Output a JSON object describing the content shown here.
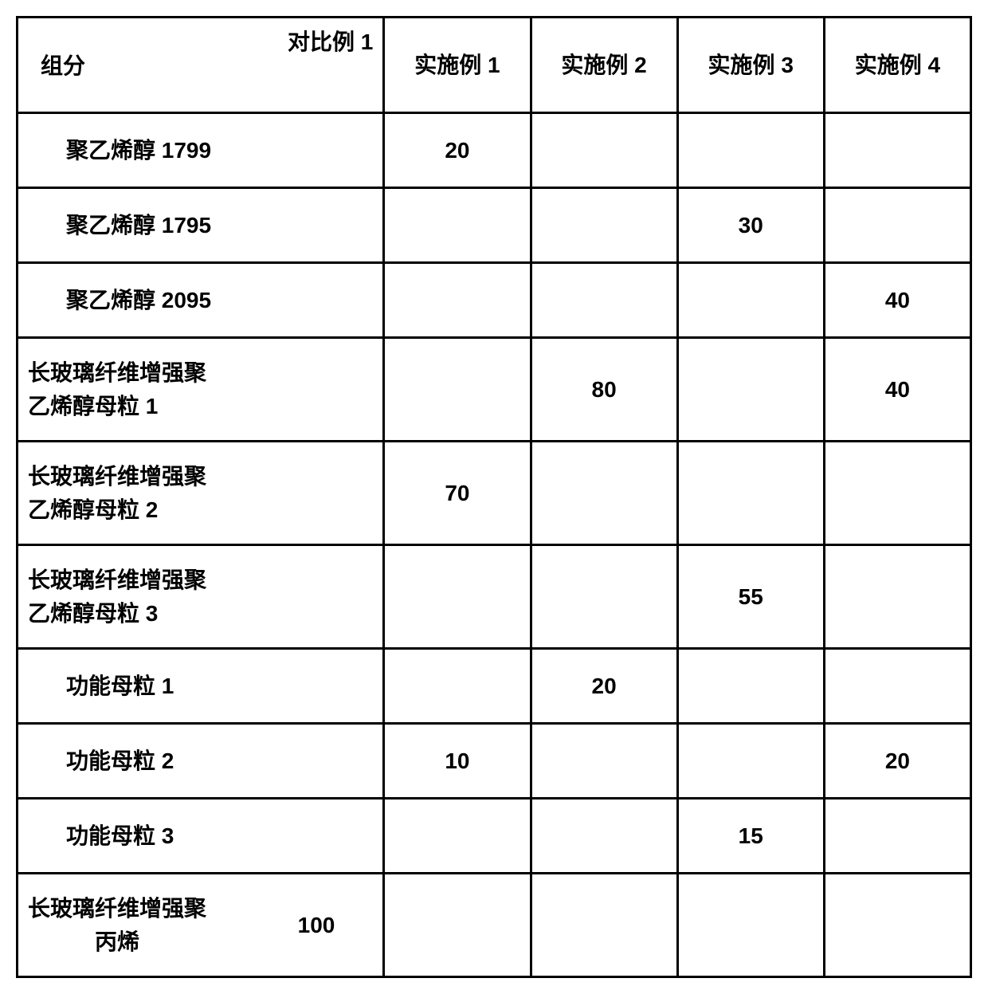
{
  "header": {
    "label_col_left": "组分",
    "label_col_right": "对比例\n1",
    "cols": [
      "实施例\n1",
      "实施例\n2",
      "实施例\n3",
      "实施例\n4"
    ]
  },
  "rows": [
    {
      "label": "聚乙烯醇 1799",
      "inline_value": "",
      "values": [
        "20",
        "",
        "",
        ""
      ],
      "tall": false,
      "center": false,
      "indent": true
    },
    {
      "label": "聚乙烯醇 1795",
      "inline_value": "",
      "values": [
        "",
        "",
        "30",
        ""
      ],
      "tall": false,
      "center": false,
      "indent": true
    },
    {
      "label": "聚乙烯醇 2095",
      "inline_value": "",
      "values": [
        "",
        "",
        "",
        "40"
      ],
      "tall": false,
      "center": false,
      "indent": true
    },
    {
      "label": "长玻璃纤维增强聚\n乙烯醇母粒 1",
      "inline_value": "",
      "values": [
        "",
        "80",
        "",
        "40"
      ],
      "tall": true,
      "center": false,
      "indent": false
    },
    {
      "label": "长玻璃纤维增强聚\n乙烯醇母粒 2",
      "inline_value": "",
      "values": [
        "70",
        "",
        "",
        ""
      ],
      "tall": true,
      "center": false,
      "indent": false
    },
    {
      "label": "长玻璃纤维增强聚\n乙烯醇母粒 3",
      "inline_value": "",
      "values": [
        "",
        "",
        "55",
        ""
      ],
      "tall": true,
      "center": false,
      "indent": false
    },
    {
      "label": "功能母粒 1",
      "inline_value": "",
      "values": [
        "",
        "20",
        "",
        ""
      ],
      "tall": false,
      "center": false,
      "indent": true
    },
    {
      "label": "功能母粒 2",
      "inline_value": "",
      "values": [
        "10",
        "",
        "",
        "20"
      ],
      "tall": false,
      "center": false,
      "indent": true
    },
    {
      "label": "功能母粒 3",
      "inline_value": "",
      "values": [
        "",
        "",
        "15",
        ""
      ],
      "tall": false,
      "center": false,
      "indent": true
    },
    {
      "label": "长玻璃纤维增强聚\n丙烯",
      "inline_value": "100",
      "values": [
        "",
        "",
        "",
        ""
      ],
      "tall": true,
      "center": true,
      "indent": false
    }
  ]
}
